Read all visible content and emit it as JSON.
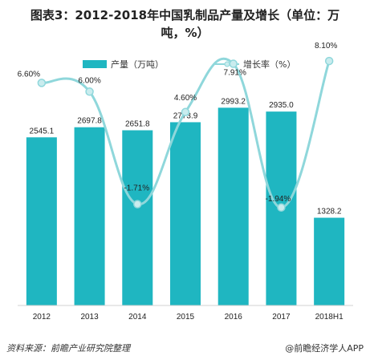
{
  "title_line1": "图表3：2012-2018年中国乳制品产量及增长（单位：万",
  "title_line2": "吨，%）",
  "footer": {
    "source": "资料来源：前瞻产业研究院整理",
    "brand": "@前瞻经济学人APP"
  },
  "colors": {
    "bar": "#1fb6c1",
    "line": "#8fd7db",
    "marker": "#c9ecee"
  },
  "chart_data": {
    "type": "bar",
    "categories": [
      "2012",
      "2013",
      "2014",
      "2015",
      "2016",
      "2017",
      "2018H1"
    ],
    "series": [
      {
        "name": "产量（万吨）",
        "type": "bar",
        "values": [
          2545.1,
          2697.8,
          2651.8,
          2773.9,
          2993.2,
          2935.0,
          1328.2
        ],
        "labels": [
          "2545.1",
          "2697.8",
          "2651.8",
          "2773.9",
          "2993.2",
          "2935.0",
          "1328.2"
        ]
      },
      {
        "name": "增长率（%）",
        "type": "line",
        "values": [
          6.6,
          6.0,
          -1.71,
          4.6,
          7.91,
          -1.94,
          8.1
        ],
        "labels": [
          "6.60%",
          "6.00%",
          "-1.71%",
          "4.60%",
          "7.91%",
          "-1.94%",
          "8.10%"
        ]
      }
    ],
    "ylim_bar": [
      0,
      3200
    ],
    "ylim_line": [
      -3,
      9
    ],
    "grid": false,
    "legend_position": "top"
  }
}
